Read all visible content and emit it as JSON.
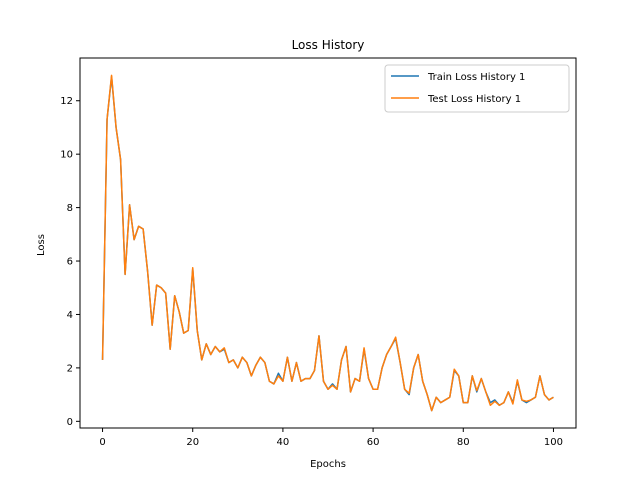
{
  "chart_data": {
    "type": "line",
    "title": "Loss History",
    "xlabel": "Epochs",
    "ylabel": "Loss",
    "xlim": [
      -5,
      105
    ],
    "ylim": [
      -0.25,
      13.6
    ],
    "xticks": [
      0,
      20,
      40,
      60,
      80,
      100
    ],
    "yticks": [
      0,
      2,
      4,
      6,
      8,
      10,
      12
    ],
    "grid": false,
    "legend_position": "top-right",
    "x": [
      0,
      1,
      2,
      3,
      4,
      5,
      6,
      7,
      8,
      9,
      10,
      11,
      12,
      13,
      14,
      15,
      16,
      17,
      18,
      19,
      20,
      21,
      22,
      23,
      24,
      25,
      26,
      27,
      28,
      29,
      30,
      31,
      32,
      33,
      34,
      35,
      36,
      37,
      38,
      39,
      40,
      41,
      42,
      43,
      44,
      45,
      46,
      47,
      48,
      49,
      50,
      51,
      52,
      53,
      54,
      55,
      56,
      57,
      58,
      59,
      60,
      61,
      62,
      63,
      64,
      65,
      66,
      67,
      68,
      69,
      70,
      71,
      72,
      73,
      74,
      75,
      76,
      77,
      78,
      79,
      80,
      81,
      82,
      83,
      84,
      85,
      86,
      87,
      88,
      89,
      90,
      91,
      92,
      93,
      94,
      95,
      96,
      97,
      98,
      99,
      100
    ],
    "series": [
      {
        "name": "Train Loss History 1",
        "color": "#1f77b4",
        "values": [
          2.3,
          11.3,
          12.9,
          11.0,
          9.8,
          5.5,
          8.1,
          6.8,
          7.3,
          7.2,
          5.6,
          3.6,
          5.1,
          5.0,
          4.8,
          2.7,
          4.7,
          4.1,
          3.3,
          3.4,
          5.7,
          3.4,
          2.3,
          2.9,
          2.5,
          2.8,
          2.6,
          2.7,
          2.2,
          2.3,
          2.0,
          2.4,
          2.2,
          1.7,
          2.1,
          2.4,
          2.2,
          1.5,
          1.4,
          1.8,
          1.5,
          2.4,
          1.5,
          2.2,
          1.5,
          1.6,
          1.6,
          1.9,
          3.2,
          1.5,
          1.2,
          1.4,
          1.2,
          2.3,
          2.8,
          1.1,
          1.6,
          1.5,
          2.7,
          1.6,
          1.2,
          1.2,
          2.0,
          2.5,
          2.8,
          3.1,
          2.2,
          1.2,
          1.0,
          2.0,
          2.5,
          1.5,
          1.0,
          0.4,
          0.9,
          0.7,
          0.8,
          0.9,
          1.9,
          1.7,
          0.7,
          0.7,
          1.7,
          1.1,
          1.6,
          1.1,
          0.7,
          0.8,
          0.6,
          0.7,
          1.1,
          0.7,
          1.5,
          0.8,
          0.7,
          0.8,
          0.9,
          1.7,
          1.0,
          0.8,
          0.9
        ]
      },
      {
        "name": "Test Loss History 1",
        "color": "#ff7f0e",
        "values": [
          2.3,
          11.3,
          12.95,
          11.0,
          9.8,
          5.5,
          8.1,
          6.8,
          7.3,
          7.2,
          5.6,
          3.6,
          5.1,
          5.0,
          4.8,
          2.7,
          4.7,
          4.1,
          3.3,
          3.4,
          5.75,
          3.4,
          2.3,
          2.9,
          2.5,
          2.8,
          2.6,
          2.75,
          2.2,
          2.3,
          2.0,
          2.4,
          2.2,
          1.7,
          2.1,
          2.4,
          2.2,
          1.5,
          1.4,
          1.7,
          1.5,
          2.4,
          1.5,
          2.2,
          1.5,
          1.6,
          1.6,
          1.9,
          3.2,
          1.5,
          1.2,
          1.35,
          1.2,
          2.3,
          2.8,
          1.1,
          1.6,
          1.5,
          2.75,
          1.6,
          1.2,
          1.2,
          2.0,
          2.5,
          2.8,
          3.15,
          2.2,
          1.2,
          1.05,
          2.0,
          2.5,
          1.5,
          1.0,
          0.4,
          0.9,
          0.7,
          0.8,
          0.9,
          1.95,
          1.7,
          0.7,
          0.7,
          1.7,
          1.15,
          1.6,
          1.1,
          0.6,
          0.75,
          0.6,
          0.7,
          1.1,
          0.65,
          1.55,
          0.8,
          0.75,
          0.8,
          0.9,
          1.7,
          1.0,
          0.8,
          0.9
        ]
      }
    ]
  }
}
